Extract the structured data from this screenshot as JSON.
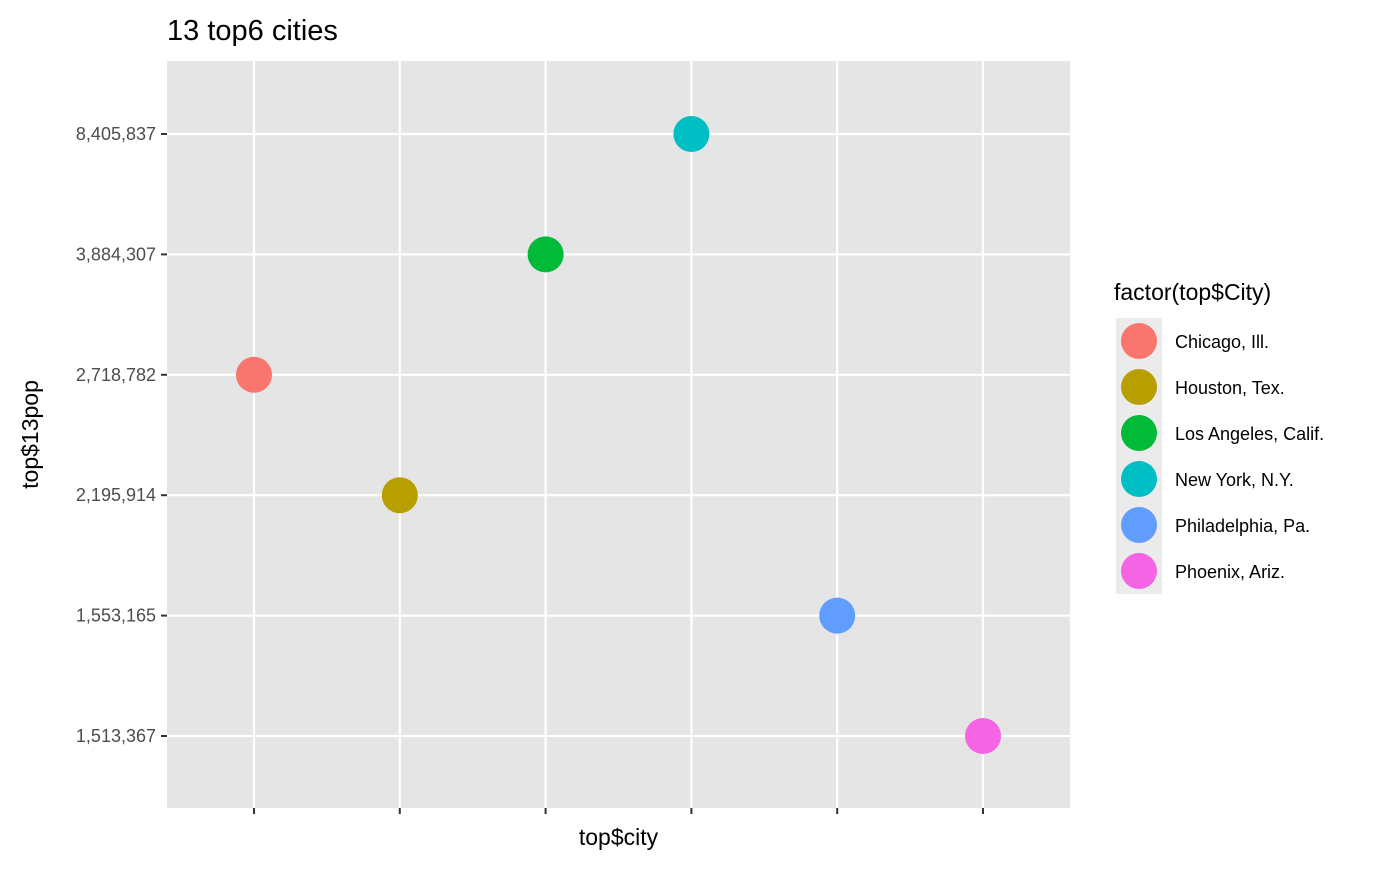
{
  "chart_data": {
    "type": "scatter",
    "title": "13 top6 cities",
    "xlabel": "top$city",
    "ylabel": "top$13pop",
    "x_tick_labels_shown": false,
    "y_scale": "discrete",
    "y_categories": [
      "1,513,367",
      "1,553,165",
      "2,195,914",
      "2,718,782",
      "3,884,307",
      "8,405,837"
    ],
    "grid": true,
    "legend": {
      "title": "factor(top$City)",
      "placement": "right",
      "entries": [
        "Chicago, Ill.",
        "Houston, Tex.",
        "Los Angeles, Calif.",
        "New York, N.Y.",
        "Philadelphia, Pa.",
        "Phoenix, Ariz."
      ]
    },
    "points": [
      {
        "city": "Chicago, Ill.",
        "x_index": 1,
        "y": "2,718,782",
        "color": "#F8766D"
      },
      {
        "city": "Houston, Tex.",
        "x_index": 2,
        "y": "2,195,914",
        "color": "#B79F00"
      },
      {
        "city": "Los Angeles, Calif.",
        "x_index": 3,
        "y": "3,884,307",
        "color": "#00BA38"
      },
      {
        "city": "New York, N.Y.",
        "x_index": 4,
        "y": "8,405,837",
        "color": "#00BFC4"
      },
      {
        "city": "Philadelphia, Pa.",
        "x_index": 5,
        "y": "1,553,165",
        "color": "#619CFF"
      },
      {
        "city": "Phoenix, Ariz.",
        "x_index": 6,
        "y": "1,513,367",
        "color": "#F564E3"
      }
    ],
    "colors": {
      "panel_background": "#E5E5E5",
      "grid_line": "#FFFFFF",
      "tick_label": "#4D4D4D",
      "text": "#000000",
      "legend_key_background": "#EBEBEB"
    }
  }
}
